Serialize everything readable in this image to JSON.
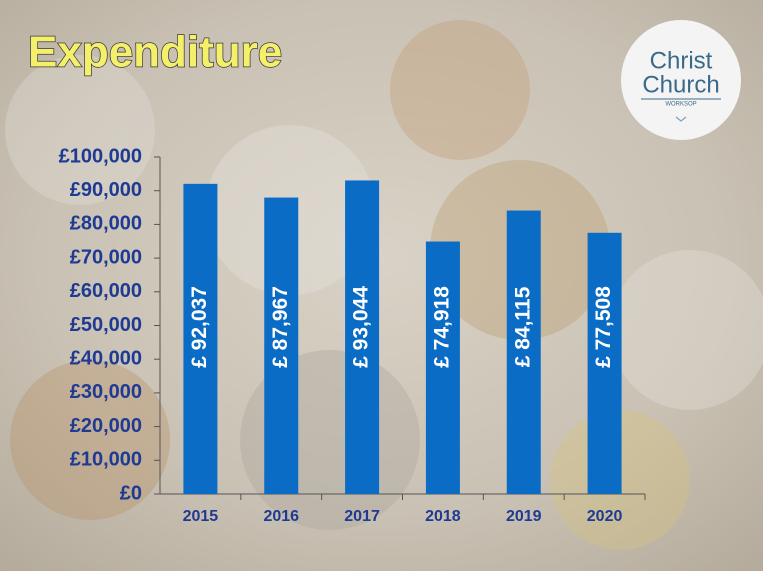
{
  "chart_data": {
    "type": "bar",
    "title": "Expenditure",
    "categories": [
      "2015",
      "2016",
      "2017",
      "2018",
      "2019",
      "2020"
    ],
    "values": [
      92037,
      87967,
      93044,
      74918,
      84115,
      77508
    ],
    "value_labels": [
      "£ 92,037",
      "£ 87,967",
      "£ 93,044",
      "£ 74,918",
      "£ 84,115",
      "£ 77,508"
    ],
    "color": "#0b6cc6",
    "ylim": [
      0,
      100000
    ],
    "yticks": [
      {
        "value": 0,
        "label": "£0"
      },
      {
        "value": 10000,
        "label": "£10,000"
      },
      {
        "value": 20000,
        "label": "£20,000"
      },
      {
        "value": 30000,
        "label": "£30,000"
      },
      {
        "value": 40000,
        "label": "£40,000"
      },
      {
        "value": 50000,
        "label": "£50,000"
      },
      {
        "value": 60000,
        "label": "£60,000"
      },
      {
        "value": 70000,
        "label": "£70,000"
      },
      {
        "value": 80000,
        "label": "£80,000"
      },
      {
        "value": 90000,
        "label": "£90,000"
      },
      {
        "value": 100000,
        "label": "£100,000"
      }
    ]
  },
  "logo": {
    "line1": "Christ",
    "line2": "Church",
    "line3": "WORKSOP"
  }
}
